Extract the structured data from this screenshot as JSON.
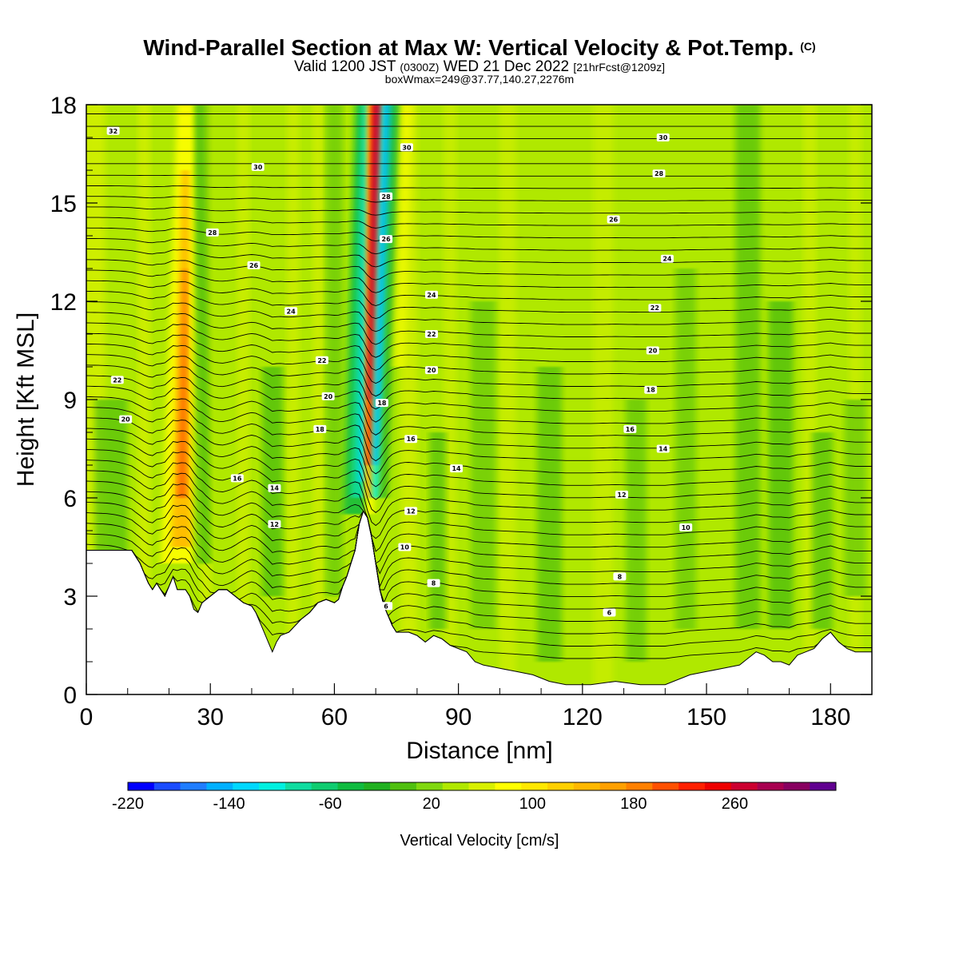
{
  "header": {
    "title": "Wind-Parallel Section at Max W: Vertical Velocity & Pot.Temp.",
    "copyright": "(C)",
    "valid_prefix": "Valid 1200 JST",
    "valid_zulu": "(0300Z)",
    "valid_date": "WED 21 Dec 2022",
    "forecast_info": "[21hrFcst@1209z]",
    "box_info": "boxWmax=249@37.77,140.27,2276m"
  },
  "chart_data": {
    "type": "heatmap",
    "xlabel": "Distance [nm]",
    "ylabel": "Height [Kft MSL]",
    "xlim": [
      0,
      190
    ],
    "ylim": [
      0,
      18
    ],
    "x_ticks": [
      "0",
      "30",
      "60",
      "90",
      "120",
      "150",
      "180"
    ],
    "y_ticks": [
      "0",
      "3",
      "6",
      "9",
      "12",
      "15",
      "18"
    ],
    "x_tick_values": [
      0,
      30,
      60,
      90,
      120,
      150,
      180
    ],
    "y_tick_values": [
      0,
      3,
      6,
      9,
      12,
      15,
      18
    ],
    "colorbar": {
      "label": "Vertical Velocity [cm/s]",
      "range": [
        -220,
        340
      ],
      "step": 20,
      "tick_labels": [
        "-220",
        "-140",
        "-60",
        "20",
        "100",
        "180",
        "260"
      ],
      "tick_values": [
        -220,
        -140,
        -60,
        20,
        100,
        180,
        260
      ],
      "colors": [
        "#0000ff",
        "#1a4cff",
        "#1f7dff",
        "#00b0ff",
        "#00d8ff",
        "#00f0e0",
        "#10dca0",
        "#10cc70",
        "#10bb40",
        "#20b020",
        "#50c010",
        "#80d810",
        "#b0e800",
        "#d8f000",
        "#ffff00",
        "#ffe800",
        "#ffd000",
        "#ffb800",
        "#ffa000",
        "#ff8000",
        "#ff5000",
        "#ff2000",
        "#ee0000",
        "#cc0030",
        "#a80050",
        "#880060",
        "#600090"
      ]
    },
    "terrain_height_kft": [
      [
        0,
        4.4
      ],
      [
        6,
        4.4
      ],
      [
        11,
        4.4
      ],
      [
        12,
        4.2
      ],
      [
        13,
        4.0
      ],
      [
        14,
        3.7
      ],
      [
        15,
        3.4
      ],
      [
        16,
        3.2
      ],
      [
        17,
        3.4
      ],
      [
        18,
        3.2
      ],
      [
        19,
        3.0
      ],
      [
        20,
        3.3
      ],
      [
        21,
        3.6
      ],
      [
        22,
        3.2
      ],
      [
        24,
        3.2
      ],
      [
        25,
        3.0
      ],
      [
        26,
        2.6
      ],
      [
        27,
        2.5
      ],
      [
        28,
        2.8
      ],
      [
        30,
        3.0
      ],
      [
        32,
        3.2
      ],
      [
        34,
        3.2
      ],
      [
        36,
        3.0
      ],
      [
        38,
        2.8
      ],
      [
        40,
        2.7
      ],
      [
        41,
        2.5
      ],
      [
        42,
        2.2
      ],
      [
        43,
        1.9
      ],
      [
        44,
        1.6
      ],
      [
        45,
        1.3
      ],
      [
        46,
        1.6
      ],
      [
        47,
        1.8
      ],
      [
        49,
        1.9
      ],
      [
        52,
        2.3
      ],
      [
        54,
        2.5
      ],
      [
        56,
        2.8
      ],
      [
        58,
        2.9
      ],
      [
        60,
        2.8
      ],
      [
        61,
        2.9
      ],
      [
        62,
        3.3
      ],
      [
        63,
        3.6
      ],
      [
        64,
        4.0
      ],
      [
        65,
        4.4
      ],
      [
        66,
        5.2
      ],
      [
        67,
        5.6
      ],
      [
        68,
        5.4
      ],
      [
        69,
        4.8
      ],
      [
        70,
        4.0
      ],
      [
        71,
        3.2
      ],
      [
        72,
        2.7
      ],
      [
        73,
        2.4
      ],
      [
        74,
        2.1
      ],
      [
        75,
        1.9
      ],
      [
        78,
        1.9
      ],
      [
        80,
        1.8
      ],
      [
        82,
        1.6
      ],
      [
        84,
        1.8
      ],
      [
        86,
        1.7
      ],
      [
        88,
        1.5
      ],
      [
        90,
        1.4
      ],
      [
        92,
        1.3
      ],
      [
        94,
        1.0
      ],
      [
        96,
        0.9
      ],
      [
        100,
        0.8
      ],
      [
        104,
        0.7
      ],
      [
        108,
        0.6
      ],
      [
        112,
        0.4
      ],
      [
        116,
        0.3
      ],
      [
        122,
        0.3
      ],
      [
        128,
        0.4
      ],
      [
        134,
        0.3
      ],
      [
        140,
        0.3
      ],
      [
        146,
        0.6
      ],
      [
        150,
        0.7
      ],
      [
        154,
        0.8
      ],
      [
        158,
        0.9
      ],
      [
        160,
        1.1
      ],
      [
        162,
        1.3
      ],
      [
        164,
        1.2
      ],
      [
        166,
        1.0
      ],
      [
        168,
        1.0
      ],
      [
        170,
        0.9
      ],
      [
        172,
        1.2
      ],
      [
        174,
        1.3
      ],
      [
        176,
        1.4
      ],
      [
        178,
        1.7
      ],
      [
        180,
        1.9
      ],
      [
        182,
        1.6
      ],
      [
        184,
        1.4
      ],
      [
        186,
        1.3
      ],
      [
        190,
        1.3
      ]
    ],
    "theta_contour_labels": [
      {
        "label": "32",
        "x": 6.5,
        "y": 17.2
      },
      {
        "label": "30",
        "x": 41.5,
        "y": 16.1
      },
      {
        "label": "28",
        "x": 30.5,
        "y": 14.1
      },
      {
        "label": "26",
        "x": 40.5,
        "y": 13.1
      },
      {
        "label": "24",
        "x": 49.5,
        "y": 11.7
      },
      {
        "label": "22",
        "x": 57,
        "y": 10.2
      },
      {
        "label": "22",
        "x": 7.5,
        "y": 9.6
      },
      {
        "label": "20",
        "x": 58.5,
        "y": 9.1
      },
      {
        "label": "20",
        "x": 9.5,
        "y": 8.4
      },
      {
        "label": "18",
        "x": 56.5,
        "y": 8.1
      },
      {
        "label": "16",
        "x": 36.5,
        "y": 6.6
      },
      {
        "label": "14",
        "x": 45.5,
        "y": 6.3
      },
      {
        "label": "12",
        "x": 45.5,
        "y": 5.2
      },
      {
        "label": "30",
        "x": 77.5,
        "y": 16.7
      },
      {
        "label": "28",
        "x": 72.5,
        "y": 15.2
      },
      {
        "label": "26",
        "x": 72.5,
        "y": 13.9
      },
      {
        "label": "18",
        "x": 71.5,
        "y": 8.9
      },
      {
        "label": "24",
        "x": 83.5,
        "y": 12.2
      },
      {
        "label": "22",
        "x": 83.5,
        "y": 11.0
      },
      {
        "label": "20",
        "x": 83.5,
        "y": 9.9
      },
      {
        "label": "16",
        "x": 78.5,
        "y": 7.8
      },
      {
        "label": "14",
        "x": 89.5,
        "y": 6.9
      },
      {
        "label": "12",
        "x": 78.5,
        "y": 5.6
      },
      {
        "label": "10",
        "x": 77,
        "y": 4.5
      },
      {
        "label": "8",
        "x": 84,
        "y": 3.4
      },
      {
        "label": "6",
        "x": 72.5,
        "y": 2.7
      },
      {
        "label": "30",
        "x": 139.5,
        "y": 17.0
      },
      {
        "label": "28",
        "x": 138.5,
        "y": 15.9
      },
      {
        "label": "26",
        "x": 127.5,
        "y": 14.5
      },
      {
        "label": "24",
        "x": 140.5,
        "y": 13.3
      },
      {
        "label": "22",
        "x": 137.5,
        "y": 11.8
      },
      {
        "label": "20",
        "x": 137,
        "y": 10.5
      },
      {
        "label": "18",
        "x": 136.5,
        "y": 9.3
      },
      {
        "label": "16",
        "x": 131.5,
        "y": 8.1
      },
      {
        "label": "14",
        "x": 139.5,
        "y": 7.5
      },
      {
        "label": "12",
        "x": 129.5,
        "y": 6.1
      },
      {
        "label": "10",
        "x": 145,
        "y": 5.1
      },
      {
        "label": "8",
        "x": 129,
        "y": 3.6
      },
      {
        "label": "6",
        "x": 126.5,
        "y": 2.5
      }
    ],
    "updraft_core": {
      "x": 69,
      "y_from": 5.8,
      "y_to": 18,
      "w_max_cm_s": 249
    },
    "downdraft_core": {
      "x": 72,
      "y_from": 6.0,
      "y_to": 18
    }
  }
}
